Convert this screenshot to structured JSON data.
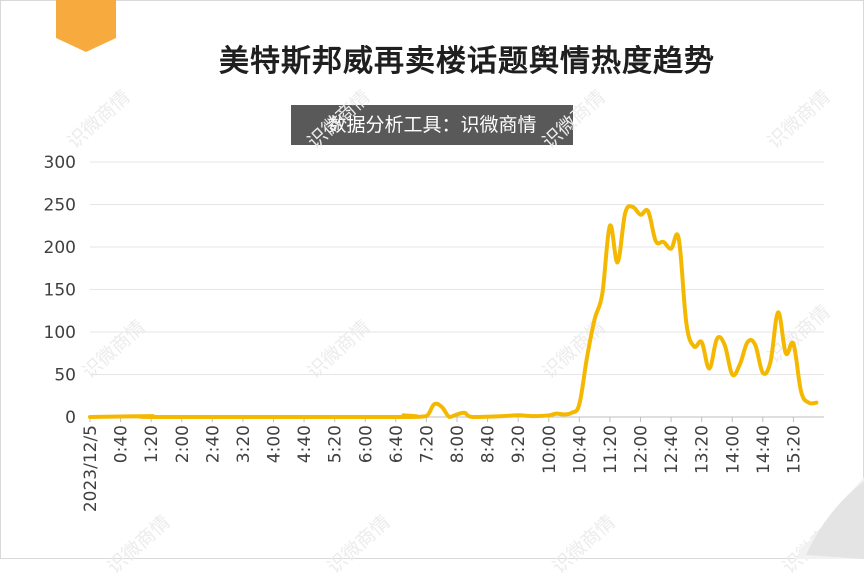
{
  "title": "美特斯邦威再卖楼话题舆情热度趋势",
  "source_label": "数据分析工具：识微商情",
  "watermark_text": "识微商情",
  "colors": {
    "line": "#f5b800",
    "badge": "#f7ab3f",
    "source_bg": "#595959",
    "grid": "#e6e6e6"
  },
  "chart_data": {
    "type": "line",
    "title": "美特斯邦威再卖楼话题舆情热度趋势",
    "xlabel": "",
    "ylabel": "",
    "ylim": [
      0,
      300
    ],
    "yticks": [
      0,
      50,
      100,
      150,
      200,
      250,
      300
    ],
    "grid": true,
    "legend": "none",
    "x_tick_labels": [
      "2023/12/5",
      "0:40",
      "1:20",
      "2:00",
      "2:40",
      "3:20",
      "4:00",
      "4:40",
      "5:20",
      "6:00",
      "6:40",
      "7:20",
      "8:00",
      "8:40",
      "9:20",
      "10:00",
      "10:40",
      "11:20",
      "12:00",
      "12:40",
      "13:20",
      "14:00",
      "14:40",
      "15:20"
    ],
    "series": [
      {
        "points": [
          [
            "0:00",
            0
          ],
          [
            "1:20",
            1
          ],
          [
            "1:30",
            0
          ],
          [
            "6:40",
            0
          ],
          [
            "6:50",
            2
          ],
          [
            "7:00",
            0
          ],
          [
            "7:20",
            1
          ],
          [
            "7:30",
            15
          ],
          [
            "7:40",
            12
          ],
          [
            "7:50",
            0
          ],
          [
            "8:00",
            3
          ],
          [
            "8:10",
            5
          ],
          [
            "8:20",
            0
          ],
          [
            "9:00",
            1
          ],
          [
            "9:20",
            2
          ],
          [
            "9:40",
            1
          ],
          [
            "10:00",
            2
          ],
          [
            "10:10",
            4
          ],
          [
            "10:20",
            3
          ],
          [
            "10:30",
            5
          ],
          [
            "10:40",
            15
          ],
          [
            "10:50",
            70
          ],
          [
            "11:00",
            115
          ],
          [
            "11:10",
            145
          ],
          [
            "11:20",
            225
          ],
          [
            "11:30",
            182
          ],
          [
            "11:40",
            240
          ],
          [
            "11:50",
            247
          ],
          [
            "12:00",
            238
          ],
          [
            "12:10",
            242
          ],
          [
            "12:20",
            207
          ],
          [
            "12:30",
            206
          ],
          [
            "12:40",
            198
          ],
          [
            "12:50",
            210
          ],
          [
            "13:00",
            110
          ],
          [
            "13:10",
            83
          ],
          [
            "13:20",
            88
          ],
          [
            "13:30",
            57
          ],
          [
            "13:40",
            92
          ],
          [
            "13:50",
            85
          ],
          [
            "14:00",
            50
          ],
          [
            "14:10",
            62
          ],
          [
            "14:20",
            88
          ],
          [
            "14:30",
            85
          ],
          [
            "14:40",
            52
          ],
          [
            "14:50",
            65
          ],
          [
            "15:00",
            123
          ],
          [
            "15:10",
            75
          ],
          [
            "15:20",
            86
          ],
          [
            "15:30",
            30
          ],
          [
            "15:40",
            17
          ],
          [
            "15:50",
            17
          ]
        ]
      }
    ]
  }
}
